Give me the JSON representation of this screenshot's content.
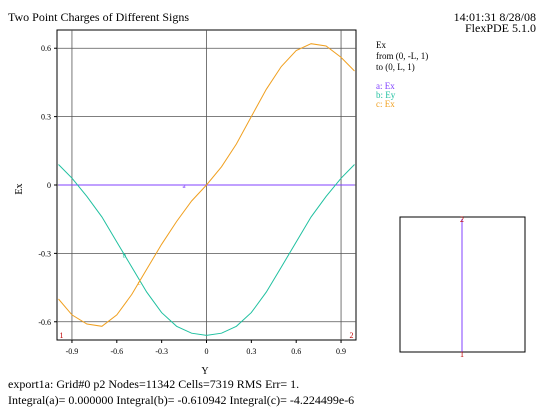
{
  "header": {
    "title": "Two Point Charges of Different Signs",
    "timestamp": "14:01:31 8/28/08",
    "version": "FlexPDE 5.1.0"
  },
  "legend": {
    "heading": "Ex",
    "from": "from (0, -L, 1)",
    "to": "to (0, L, 1)",
    "entries": [
      "a: Ex",
      "b: Ey",
      "c: Ex"
    ],
    "colors": [
      "#8040ff",
      "#20c0a0",
      "#f0a020"
    ]
  },
  "footer": {
    "line1": "export1a:  Grid#0  p2  Nodes=11342 Cells=7319 RMS Err= 1.",
    "line2": "Integral(a)=  0.000000 Integral(b)= -0.610942 Integral(c)= -4.224499e-6"
  },
  "chart_data": {
    "type": "line",
    "title": "Two Point Charges of Different Signs",
    "xlabel": "Y",
    "ylabel": "Ex",
    "xlim": [
      -1.0,
      1.0
    ],
    "ylim": [
      -0.68,
      0.68
    ],
    "xticks": [
      -0.9,
      -0.6,
      -0.3,
      0,
      0.3,
      0.6,
      0.9
    ],
    "xtick_labels": [
      "-0.9",
      "-0.6",
      "-0.3",
      "0",
      "0.3",
      "0.6",
      "0.9"
    ],
    "yticks": [
      -0.6,
      -0.3,
      0,
      0.3,
      0.6
    ],
    "ytick_labels": [
      "-0.6",
      "-0.3",
      "0",
      "0.3",
      "0.6"
    ],
    "grid_x": [
      -0.9,
      0,
      0.9
    ],
    "grid_y": [
      -0.6,
      -0.3,
      0,
      0.3,
      0.6
    ],
    "endpoint_markers": [
      "1",
      "2"
    ],
    "x": [
      -0.99,
      -0.9,
      -0.8,
      -0.7,
      -0.6,
      -0.5,
      -0.4,
      -0.3,
      -0.2,
      -0.1,
      0,
      0.1,
      0.2,
      0.3,
      0.4,
      0.5,
      0.6,
      0.7,
      0.8,
      0.9,
      0.99
    ],
    "series": [
      {
        "name": "a: Ex",
        "color": "#8040ff",
        "label": "a",
        "label_x": -0.15,
        "values": [
          0,
          0,
          0,
          0,
          0,
          0,
          0,
          0,
          0,
          0,
          0,
          0,
          0,
          0,
          0,
          0,
          0,
          0,
          0,
          0,
          0
        ]
      },
      {
        "name": "b: Ey",
        "color": "#20c0a0",
        "label": "b",
        "label_x": -0.55,
        "values": [
          0.09,
          0.03,
          -0.05,
          -0.14,
          -0.25,
          -0.36,
          -0.47,
          -0.56,
          -0.62,
          -0.65,
          -0.66,
          -0.65,
          -0.62,
          -0.56,
          -0.47,
          -0.36,
          -0.25,
          -0.14,
          -0.05,
          0.03,
          0.09
        ]
      },
      {
        "name": "c: Ex",
        "color": "#f0a020",
        "label": "c",
        "label_x": -0.45,
        "values": [
          -0.5,
          -0.57,
          -0.61,
          -0.62,
          -0.57,
          -0.48,
          -0.37,
          -0.26,
          -0.16,
          -0.07,
          0.0,
          0.08,
          0.18,
          0.3,
          0.42,
          0.52,
          0.59,
          0.62,
          0.61,
          0.56,
          0.5
        ]
      }
    ]
  },
  "inset": {
    "markers": [
      "2",
      "1"
    ]
  }
}
